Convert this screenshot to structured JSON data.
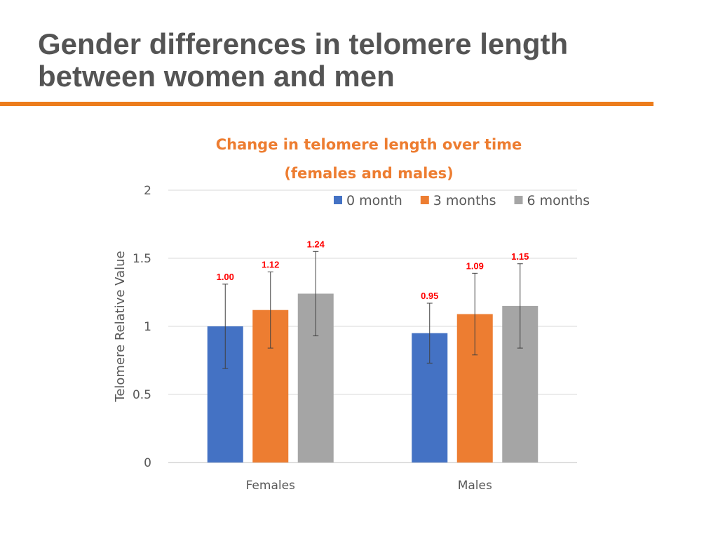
{
  "slide": {
    "title_line1": "Gender differences in telomere length",
    "title_line2": "between women and men",
    "accent_color": "#ec7c1c"
  },
  "chart_data": {
    "type": "bar",
    "title_line1": "Change in telomere length over time",
    "title_line2": "(females and males)",
    "categories": [
      "Females",
      "Males"
    ],
    "series": [
      {
        "name": "0 month",
        "color": "#4472c4",
        "values": [
          1.0,
          0.95
        ],
        "error": [
          0.31,
          0.22
        ],
        "labels": [
          "1.00",
          "0.95"
        ]
      },
      {
        "name": "3 months",
        "color": "#ed7d31",
        "values": [
          1.12,
          1.09
        ],
        "error": [
          0.28,
          0.3
        ],
        "labels": [
          "1.12",
          "1.09"
        ]
      },
      {
        "name": "6 months",
        "color": "#a5a5a5",
        "values": [
          1.24,
          1.15
        ],
        "error": [
          0.31,
          0.31
        ],
        "labels": [
          "1.24",
          "1.15"
        ]
      }
    ],
    "xlabel": "",
    "ylabel": "Telomere Relative Value",
    "ylim": [
      0,
      2
    ],
    "yticks": [
      0,
      0.5,
      1,
      1.5,
      2
    ],
    "ytick_labels": [
      "0",
      "0.5",
      "1",
      "1.5",
      "2"
    ],
    "grid": true,
    "legend_position": "top-right",
    "data_label_color": "#ff0000"
  }
}
